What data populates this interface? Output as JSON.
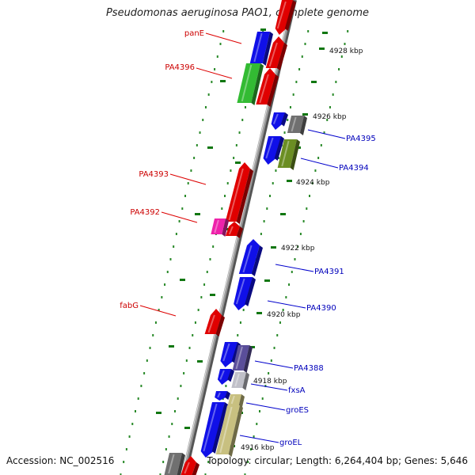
{
  "title": "Pseudomonas aeruginosa PAO1, complete genome",
  "accession": "Accession: NC_002516",
  "topology": "Topology: circular; Length: 6,264,404 bp; Genes: 5,646",
  "colors": {
    "backbone": "#888888",
    "tick": "#117711",
    "left_label": "#cc0000",
    "right_label": "#0000bb",
    "red": "#e00000",
    "blue": "#1010e8",
    "green": "#33bb33",
    "magenta": "#ee22aa",
    "gray": "#707070",
    "olive": "#6b8e23",
    "slate": "#5a4e9a",
    "lightgray": "#c0c0c8",
    "khaki": "#c8c080"
  },
  "ticks": [
    "4928 kbp",
    "4926 kbp",
    "4924 kbp",
    "4922 kbp",
    "4920 kbp",
    "4918 kbp",
    "4916 kbp"
  ],
  "left_labels": [
    "panE",
    "PA4396",
    "PA4393",
    "PA4392",
    "fabG"
  ],
  "right_labels": [
    "PA4395",
    "PA4394",
    "PA4391",
    "PA4390",
    "PA4388",
    "fxsA",
    "groES",
    "groEL"
  ]
}
